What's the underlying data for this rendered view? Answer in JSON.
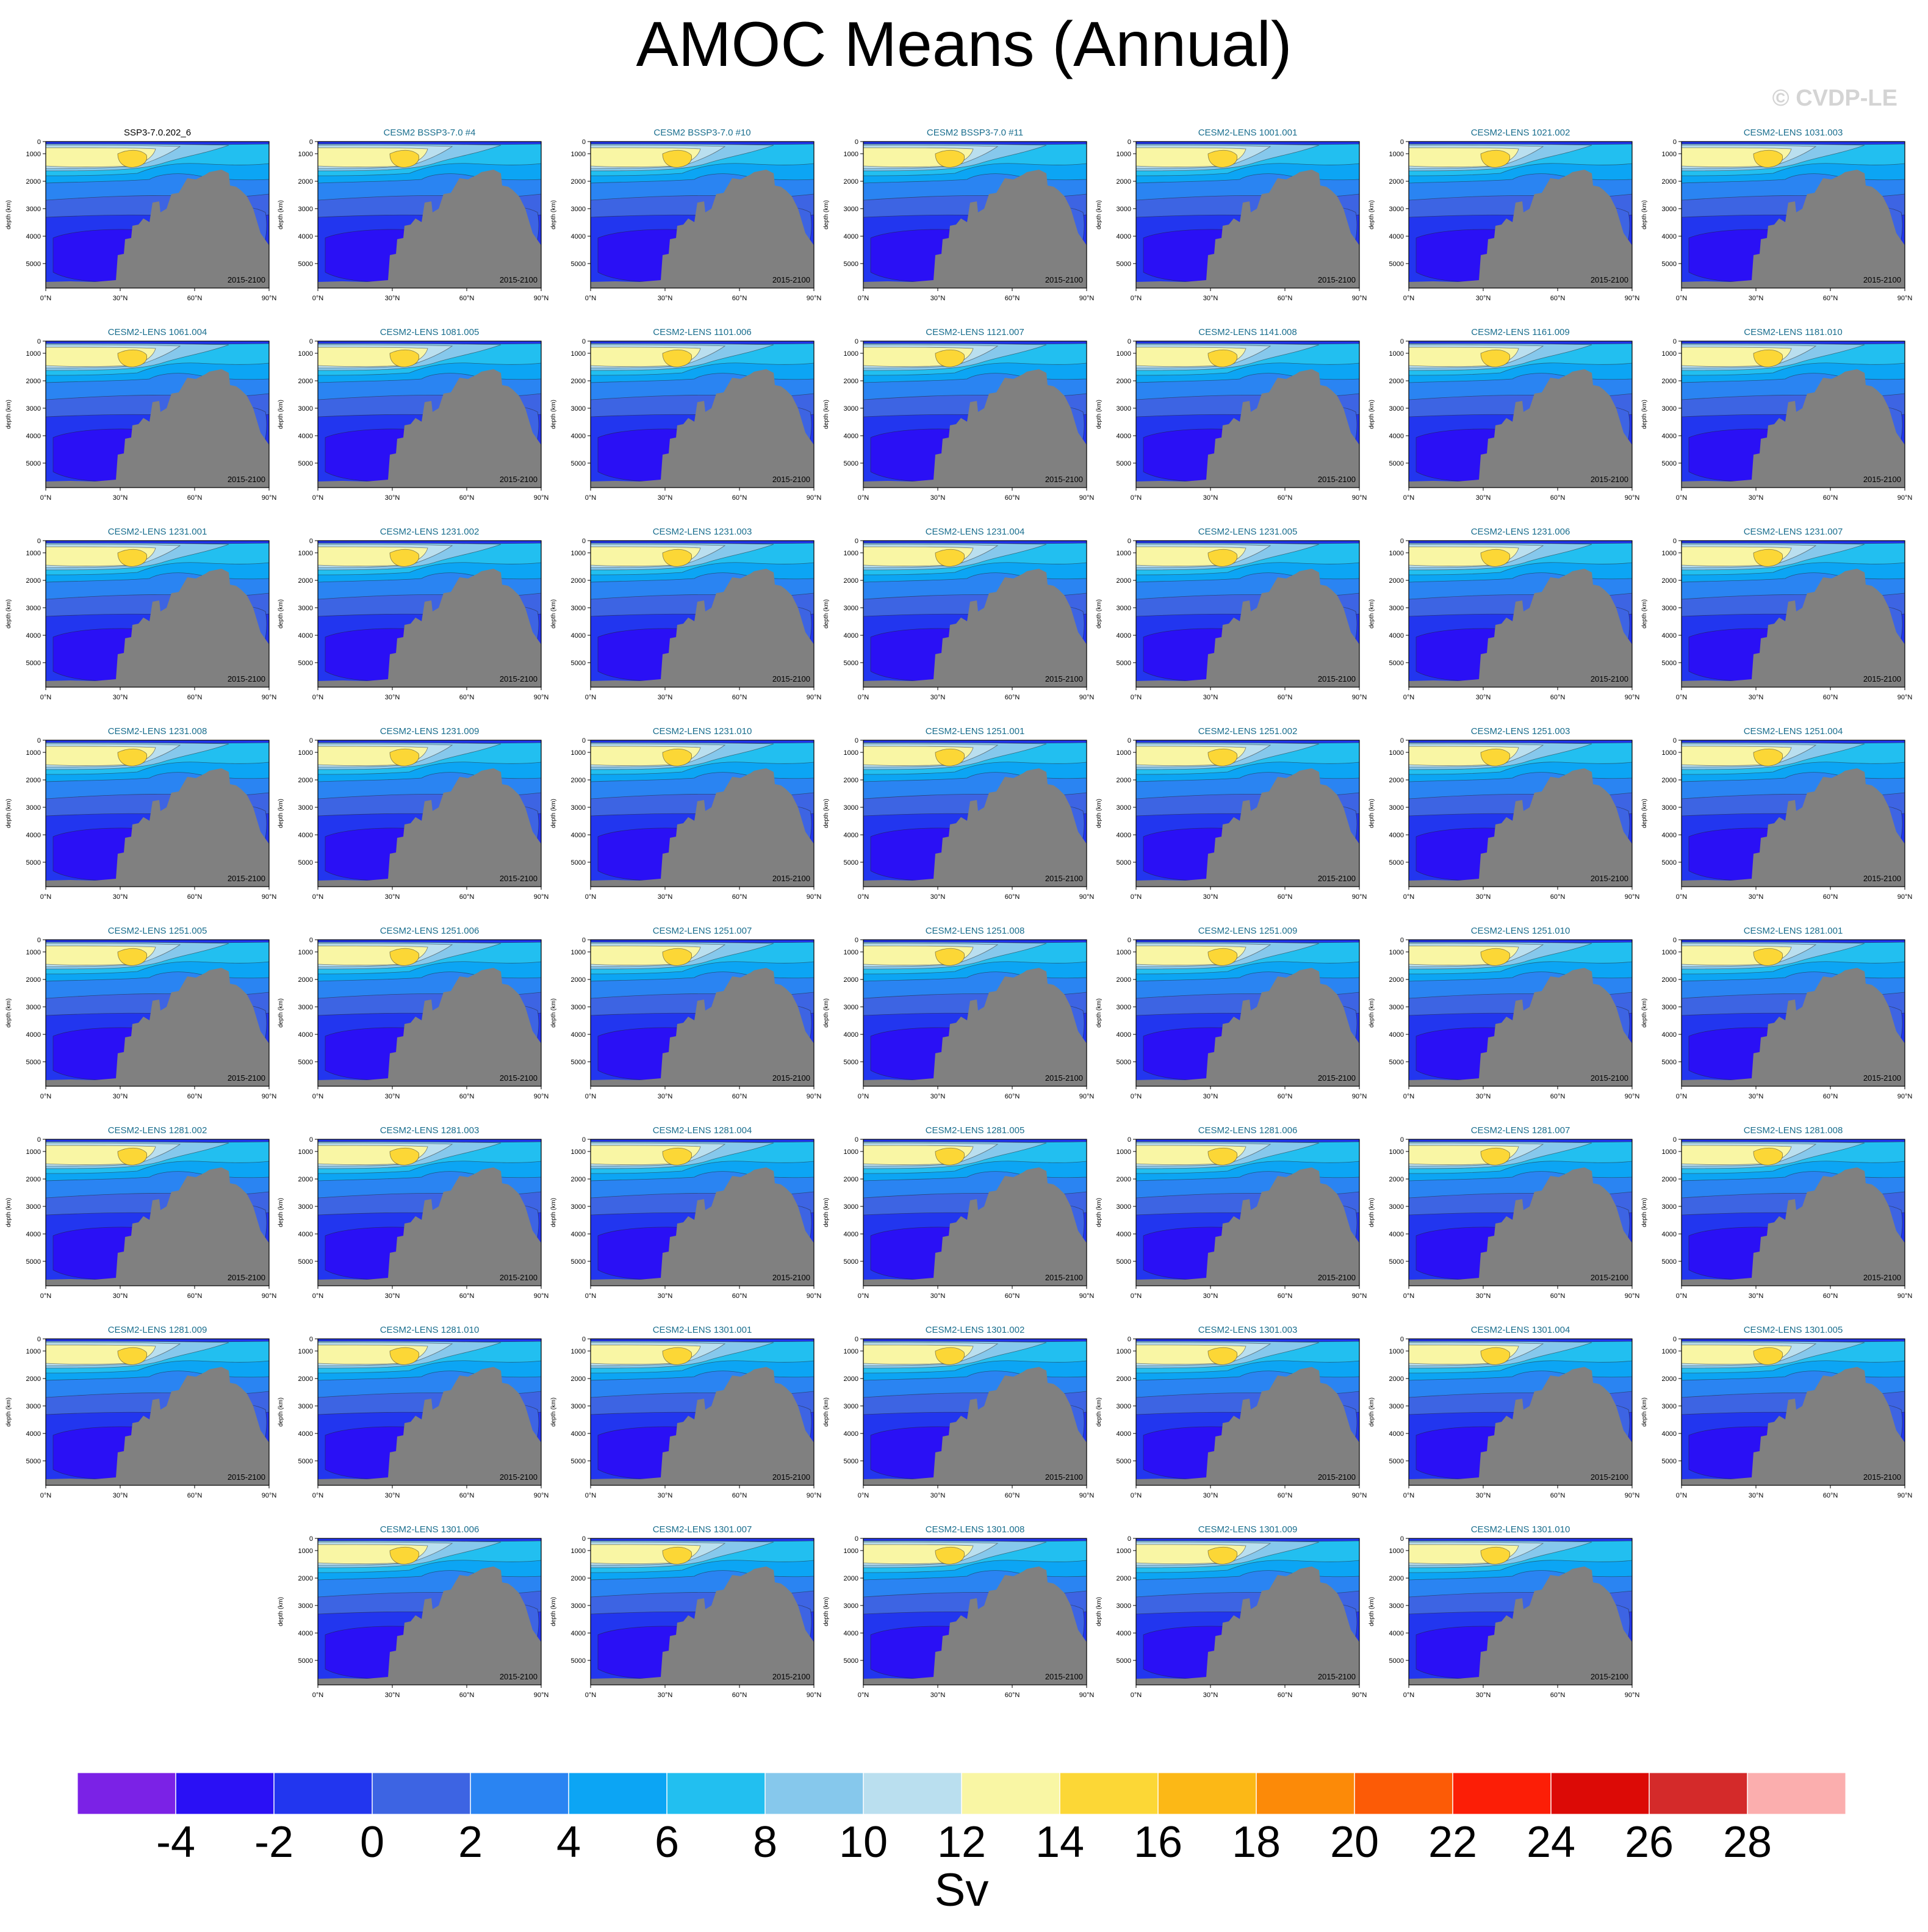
{
  "figure": {
    "title": "AMOC Means (Annual)",
    "credit": "© CVDP-LE"
  },
  "chart_data": {
    "type": "contour",
    "grid_columns": 7,
    "panel_period": "2015-2100",
    "ylabel": "depth (km)",
    "yticks": [
      "0",
      "1000",
      "2000",
      "3000",
      "4000",
      "5000"
    ],
    "xticks": [
      "0°N",
      "30°N",
      "60°N",
      "90°N"
    ],
    "colors": {
      "first_panel_title": "#000000",
      "panel_title": "#1a6e8e",
      "land": "#808080"
    },
    "panels": [
      {
        "title": "SSP3-7.0.202_6"
      },
      {
        "title": "CESM2 BSSP3-7.0 #4"
      },
      {
        "title": "CESM2 BSSP3-7.0 #10"
      },
      {
        "title": "CESM2 BSSP3-7.0 #11"
      },
      {
        "title": "CESM2-LENS 1001.001"
      },
      {
        "title": "CESM2-LENS 1021.002"
      },
      {
        "title": "CESM2-LENS 1031.003"
      },
      {
        "title": "CESM2-LENS 1061.004"
      },
      {
        "title": "CESM2-LENS 1081.005"
      },
      {
        "title": "CESM2-LENS 1101.006"
      },
      {
        "title": "CESM2-LENS 1121.007"
      },
      {
        "title": "CESM2-LENS 1141.008"
      },
      {
        "title": "CESM2-LENS 1161.009"
      },
      {
        "title": "CESM2-LENS 1181.010"
      },
      {
        "title": "CESM2-LENS 1231.001"
      },
      {
        "title": "CESM2-LENS 1231.002"
      },
      {
        "title": "CESM2-LENS 1231.003"
      },
      {
        "title": "CESM2-LENS 1231.004"
      },
      {
        "title": "CESM2-LENS 1231.005"
      },
      {
        "title": "CESM2-LENS 1231.006"
      },
      {
        "title": "CESM2-LENS 1231.007"
      },
      {
        "title": "CESM2-LENS 1231.008"
      },
      {
        "title": "CESM2-LENS 1231.009"
      },
      {
        "title": "CESM2-LENS 1231.010"
      },
      {
        "title": "CESM2-LENS 1251.001"
      },
      {
        "title": "CESM2-LENS 1251.002"
      },
      {
        "title": "CESM2-LENS 1251.003"
      },
      {
        "title": "CESM2-LENS 1251.004"
      },
      {
        "title": "CESM2-LENS 1251.005"
      },
      {
        "title": "CESM2-LENS 1251.006"
      },
      {
        "title": "CESM2-LENS 1251.007"
      },
      {
        "title": "CESM2-LENS 1251.008"
      },
      {
        "title": "CESM2-LENS 1251.009"
      },
      {
        "title": "CESM2-LENS 1251.010"
      },
      {
        "title": "CESM2-LENS 1281.001"
      },
      {
        "title": "CESM2-LENS 1281.002"
      },
      {
        "title": "CESM2-LENS 1281.003"
      },
      {
        "title": "CESM2-LENS 1281.004"
      },
      {
        "title": "CESM2-LENS 1281.005"
      },
      {
        "title": "CESM2-LENS 1281.006"
      },
      {
        "title": "CESM2-LENS 1281.007"
      },
      {
        "title": "CESM2-LENS 1281.008"
      },
      {
        "title": "CESM2-LENS 1281.009"
      },
      {
        "title": "CESM2-LENS 1281.010"
      },
      {
        "title": "CESM2-LENS 1301.001"
      },
      {
        "title": "CESM2-LENS 1301.002"
      },
      {
        "title": "CESM2-LENS 1301.003"
      },
      {
        "title": "CESM2-LENS 1301.004"
      },
      {
        "title": "CESM2-LENS 1301.005"
      },
      {
        "title": "CESM2-LENS 1301.006"
      },
      {
        "title": "CESM2-LENS 1301.007"
      },
      {
        "title": "CESM2-LENS 1301.008"
      },
      {
        "title": "CESM2-LENS 1301.009"
      },
      {
        "title": "CESM2-LENS 1301.010"
      }
    ],
    "colorbar": {
      "label": "Sv",
      "tick_labels": [
        "-4",
        "-2",
        "0",
        "2",
        "4",
        "6",
        "8",
        "10",
        "12",
        "14",
        "16",
        "18",
        "20",
        "22",
        "24",
        "26",
        "28"
      ],
      "colors": [
        "#7b22e6",
        "#2a10f5",
        "#2236ef",
        "#3d64e3",
        "#2a84f2",
        "#0ca5f4",
        "#22bff0",
        "#86c8ec",
        "#badfef",
        "#f9f6a4",
        "#fcd736",
        "#fcb816",
        "#fc8a08",
        "#fc5b06",
        "#fc1e06",
        "#dc0a06",
        "#d42a2a",
        "#fbaeae"
      ]
    }
  }
}
